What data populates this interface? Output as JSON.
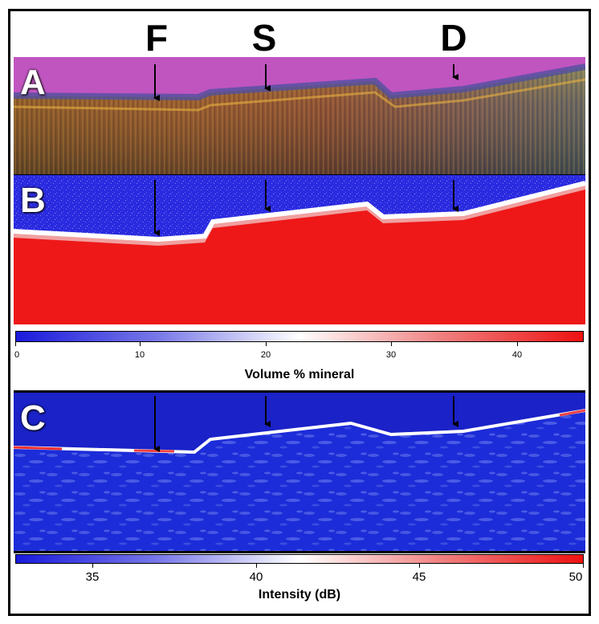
{
  "site_labels": [
    "F",
    "S",
    "D"
  ],
  "panels": {
    "a": {
      "label": "A"
    },
    "b": {
      "label": "B"
    },
    "c": {
      "label": "C"
    }
  },
  "colorbar_mineral": {
    "title": "Volume % mineral",
    "ticks": [
      "0",
      "10",
      "20",
      "30",
      "40"
    ],
    "colors": [
      "#1a1adc",
      "#ffffff",
      "#ee1111"
    ]
  },
  "colorbar_intensity": {
    "title": "Intensity (dB)",
    "ticks": [
      "35",
      "40",
      "45",
      "50"
    ],
    "colors": [
      "#1a1adc",
      "#ffffff",
      "#ee1111"
    ]
  }
}
